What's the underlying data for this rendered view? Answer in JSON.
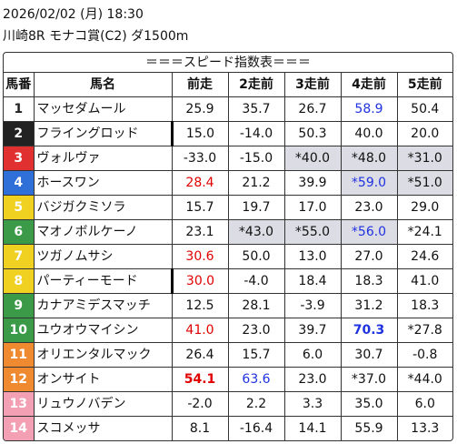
{
  "header": {
    "datetime": "2026/02/02 (月) 18:30",
    "race": "川崎8R モナコ賞(C2) ダ1500m"
  },
  "table": {
    "title": "＝＝＝スピード指数表＝＝＝",
    "columns": [
      "馬番",
      "馬名",
      "前走",
      "2走前",
      "3走前",
      "4走前",
      "5走前"
    ],
    "rows": [
      {
        "num": "1",
        "bg": "#ffffff",
        "fg": "#222222",
        "name": "マッセダムール",
        "vals": [
          "25.9",
          "35.7",
          "26.7",
          "58.9",
          "50.4"
        ],
        "cls": [
          "",
          "",
          "",
          "blue",
          ""
        ],
        "hl": [
          0,
          0,
          0,
          0,
          0
        ],
        "mark": false
      },
      {
        "num": "2",
        "bg": "#222222",
        "fg": "#ffffff",
        "name": "フライングロッド",
        "vals": [
          "15.0",
          "-14.0",
          "50.3",
          "40.0",
          "20.0"
        ],
        "cls": [
          "",
          "",
          "",
          "",
          ""
        ],
        "hl": [
          0,
          0,
          0,
          0,
          0
        ],
        "mark": true
      },
      {
        "num": "3",
        "bg": "#e03030",
        "fg": "#ffffff",
        "name": "ヴォルヴァ",
        "vals": [
          "-33.0",
          "-15.0",
          "*40.0",
          "*48.0",
          "*31.0"
        ],
        "cls": [
          "",
          "",
          "",
          "",
          ""
        ],
        "hl": [
          0,
          0,
          1,
          1,
          1
        ],
        "mark": false
      },
      {
        "num": "4",
        "bg": "#2f6fd8",
        "fg": "#ffffff",
        "name": "ホースワン",
        "vals": [
          "28.4",
          "21.2",
          "39.9",
          "*59.0",
          "*51.0"
        ],
        "cls": [
          "red",
          "",
          "",
          "blue",
          ""
        ],
        "hl": [
          0,
          0,
          0,
          1,
          1
        ],
        "mark": false
      },
      {
        "num": "5",
        "bg": "#f0d020",
        "fg": "#ffffff",
        "name": "バジガクミソラ",
        "vals": [
          "15.7",
          "19.7",
          "17.0",
          "23.0",
          "29.0"
        ],
        "cls": [
          "",
          "",
          "",
          "",
          ""
        ],
        "hl": [
          0,
          0,
          0,
          0,
          0
        ],
        "mark": false
      },
      {
        "num": "6",
        "bg": "#3a9a48",
        "fg": "#ffffff",
        "name": "マオノボルケーノ",
        "vals": [
          "23.1",
          "*43.0",
          "*55.0",
          "*56.0",
          "*24.1"
        ],
        "cls": [
          "",
          "",
          "",
          "blue",
          ""
        ],
        "hl": [
          0,
          1,
          1,
          1,
          0
        ],
        "mark": false
      },
      {
        "num": "7",
        "bg": "#f0d020",
        "fg": "#ffffff",
        "name": "ツガノムサシ",
        "vals": [
          "30.6",
          "50.0",
          "13.0",
          "27.0",
          "24.6"
        ],
        "cls": [
          "red",
          "",
          "",
          "",
          ""
        ],
        "hl": [
          0,
          0,
          0,
          0,
          0
        ],
        "mark": false
      },
      {
        "num": "8",
        "bg": "#f0d020",
        "fg": "#ffffff",
        "name": "パーティーモード",
        "vals": [
          "30.0",
          "-4.0",
          "18.4",
          "18.3",
          "41.0"
        ],
        "cls": [
          "red",
          "",
          "",
          "",
          ""
        ],
        "hl": [
          0,
          0,
          0,
          0,
          0
        ],
        "mark": true
      },
      {
        "num": "9",
        "bg": "#3a9a48",
        "fg": "#ffffff",
        "name": "カナアミデスマッチ",
        "vals": [
          "12.5",
          "28.1",
          "-3.9",
          "31.2",
          "18.3"
        ],
        "cls": [
          "",
          "",
          "",
          "",
          ""
        ],
        "hl": [
          0,
          0,
          0,
          0,
          0
        ],
        "mark": false
      },
      {
        "num": "10",
        "bg": "#3a9a48",
        "fg": "#ffffff",
        "name": "ユウオウマイシン",
        "vals": [
          "41.0",
          "23.0",
          "39.7",
          "70.3",
          "*27.8"
        ],
        "cls": [
          "red",
          "",
          "",
          "blue bold",
          ""
        ],
        "hl": [
          0,
          0,
          0,
          0,
          0
        ],
        "mark": false
      },
      {
        "num": "11",
        "bg": "#f08a30",
        "fg": "#ffffff",
        "name": "オリエンタルマック",
        "vals": [
          "26.4",
          "15.7",
          "6.0",
          "30.7",
          "-0.8"
        ],
        "cls": [
          "",
          "",
          "",
          "",
          ""
        ],
        "hl": [
          0,
          0,
          0,
          0,
          0
        ],
        "mark": false
      },
      {
        "num": "12",
        "bg": "#f08a30",
        "fg": "#ffffff",
        "name": "オンサイト",
        "vals": [
          "54.1",
          "63.6",
          "23.0",
          "*37.0",
          "*44.0"
        ],
        "cls": [
          "red bold",
          "blue",
          "",
          "",
          ""
        ],
        "hl": [
          0,
          0,
          0,
          0,
          0
        ],
        "mark": false
      },
      {
        "num": "13",
        "bg": "#f4a0b4",
        "fg": "#ffffff",
        "name": "リュウノバデン",
        "vals": [
          "-2.0",
          "2.2",
          "3.3",
          "35.0",
          "6.0"
        ],
        "cls": [
          "",
          "",
          "",
          "",
          ""
        ],
        "hl": [
          0,
          0,
          0,
          0,
          0
        ],
        "mark": false
      },
      {
        "num": "14",
        "bg": "#f4a0b4",
        "fg": "#ffffff",
        "name": "スコメッサ",
        "vals": [
          "8.1",
          "-16.4",
          "14.1",
          "55.9",
          "13.3"
        ],
        "cls": [
          "",
          "",
          "",
          "",
          ""
        ],
        "hl": [
          0,
          0,
          0,
          0,
          0
        ],
        "mark": false
      }
    ]
  }
}
